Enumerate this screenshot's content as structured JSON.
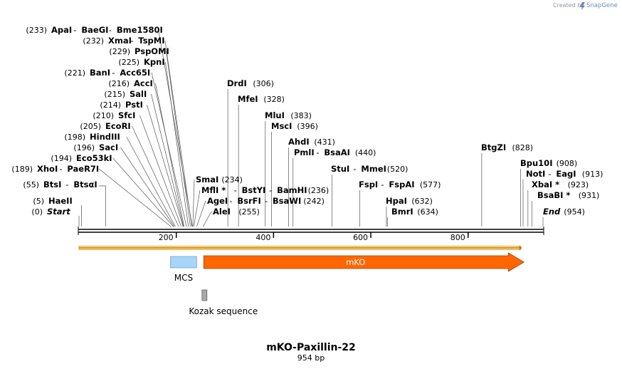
{
  "credit": {
    "created_by": "Created by",
    "brand": "SnapGene",
    "logo_icon": "snapgene-logo-icon"
  },
  "map": {
    "title": "mKO-Paxillin-22",
    "length_label": "954 bp",
    "length": 954,
    "ticks": [
      {
        "pos": 200,
        "label": "200"
      },
      {
        "pos": 400,
        "label": "400"
      },
      {
        "pos": 600,
        "label": "600"
      },
      {
        "pos": 800,
        "label": "800"
      }
    ]
  },
  "sites": [
    {
      "row": "r0",
      "kind": "left",
      "pos": 233,
      "num": "(233)",
      "parts": [
        {
          "t": "ApaI"
        },
        {
          "t": "BaeGI",
          "p": 233
        },
        {
          "t": "Bme1580I",
          "p": 233
        }
      ]
    },
    {
      "row": "r1",
      "kind": "left",
      "pos": 232,
      "num": "(232)",
      "parts": [
        {
          "t": "XmaI"
        },
        {
          "t": "TspMI",
          "p": 232
        }
      ]
    },
    {
      "row": "r2",
      "kind": "left",
      "pos": 229,
      "num": "(229)",
      "parts": [
        {
          "t": "PspOMI"
        }
      ]
    },
    {
      "row": "r3",
      "kind": "left",
      "pos": 225,
      "num": "(225)",
      "parts": [
        {
          "t": "KpnI"
        }
      ]
    },
    {
      "row": "r4",
      "kind": "left",
      "pos": 221,
      "num": "(221)",
      "parts": [
        {
          "t": "BanI"
        },
        {
          "t": "Acc65I",
          "p": 221
        }
      ]
    },
    {
      "row": "r5",
      "kind": "left",
      "pos": 216,
      "num": "(216)",
      "parts": [
        {
          "t": "AccI"
        }
      ]
    },
    {
      "row": "r6",
      "kind": "left",
      "pos": 215,
      "num": "(215)",
      "parts": [
        {
          "t": "SalI"
        }
      ]
    },
    {
      "row": "r7",
      "kind": "left",
      "pos": 214,
      "num": "(214)",
      "parts": [
        {
          "t": "PstI"
        }
      ]
    },
    {
      "row": "r8",
      "kind": "left",
      "pos": 210,
      "num": "(210)",
      "parts": [
        {
          "t": "SfcI"
        }
      ]
    },
    {
      "row": "r9",
      "kind": "left",
      "pos": 205,
      "num": "(205)",
      "parts": [
        {
          "t": "EcoRI"
        }
      ]
    },
    {
      "row": "r10",
      "kind": "left",
      "pos": 198,
      "num": "(198)",
      "parts": [
        {
          "t": "HindIII"
        }
      ]
    },
    {
      "row": "r11",
      "kind": "left",
      "pos": 196,
      "num": "(196)",
      "parts": [
        {
          "t": "SacI"
        }
      ]
    },
    {
      "row": "r12",
      "kind": "left",
      "pos": 194,
      "num": "(194)",
      "parts": [
        {
          "t": "Eco53kI"
        }
      ]
    },
    {
      "row": "r13",
      "kind": "left",
      "pos": 189,
      "num": "(189)",
      "parts": [
        {
          "t": "XhoI"
        },
        {
          "t": "PaeR7I",
          "p": 189
        }
      ]
    },
    {
      "row": "r14",
      "kind": "left",
      "pos": 55,
      "num": "(55)",
      "parts": [
        {
          "t": "BtsI"
        },
        {
          "t": "BtsαI",
          "p": 55
        }
      ]
    },
    {
      "row": "r15",
      "kind": "left",
      "pos": 5,
      "num": "(5)",
      "parts": [
        {
          "t": "HaeII"
        }
      ]
    },
    {
      "row": "r16",
      "kind": "left",
      "pos": 0,
      "num": "(0)",
      "italic": true,
      "parts": [
        {
          "t": "Start"
        }
      ]
    },
    {
      "row": "m0",
      "kind": "right",
      "pos": 234,
      "num": "(234)",
      "parts": [
        {
          "t": "SmaI"
        }
      ]
    },
    {
      "row": "m1",
      "kind": "right",
      "pos": 236,
      "num": "(236)",
      "parts": [
        {
          "t": "MflI *"
        },
        {
          "t": "BstYI",
          "p": 236
        },
        {
          "t": "BamHI",
          "p": 236
        }
      ]
    },
    {
      "row": "m2",
      "kind": "right",
      "pos": 242,
      "num": "(242)",
      "parts": [
        {
          "t": "AgeI"
        },
        {
          "t": "BsrFI",
          "p": 242
        },
        {
          "t": "BsaWI",
          "p": 242
        }
      ]
    },
    {
      "row": "m3",
      "kind": "right",
      "pos": 255,
      "num": "(255)",
      "parts": [
        {
          "t": "AleI"
        }
      ]
    },
    {
      "row": "c0",
      "kind": "right",
      "pos": 306,
      "num": "(306)",
      "parts": [
        {
          "t": "DrdI"
        }
      ]
    },
    {
      "row": "c1",
      "kind": "right",
      "pos": 328,
      "num": "(328)",
      "parts": [
        {
          "t": "MfeI"
        }
      ]
    },
    {
      "row": "c2",
      "kind": "right",
      "pos": 383,
      "num": "(383)",
      "parts": [
        {
          "t": "MluI"
        }
      ]
    },
    {
      "row": "c3",
      "kind": "right",
      "pos": 396,
      "num": "(396)",
      "parts": [
        {
          "t": "MscI"
        }
      ]
    },
    {
      "row": "c4",
      "kind": "right",
      "pos": 431,
      "num": "(431)",
      "parts": [
        {
          "t": "AhdI"
        }
      ]
    },
    {
      "row": "c5",
      "kind": "right",
      "pos": 440,
      "num": "(440)",
      "parts": [
        {
          "t": "PmlI"
        },
        {
          "t": "BsaAI",
          "p": 440
        }
      ]
    },
    {
      "row": "c6",
      "kind": "right",
      "pos": 520,
      "num": "(520)",
      "parts": [
        {
          "t": "StuI"
        },
        {
          "t": "MmeI",
          "p": 520
        }
      ]
    },
    {
      "row": "c7",
      "kind": "right",
      "pos": 577,
      "num": "(577)",
      "parts": [
        {
          "t": "FspI"
        },
        {
          "t": "FspAI",
          "p": 577
        }
      ]
    },
    {
      "row": "c8",
      "kind": "right",
      "pos": 632,
      "num": "(632)",
      "parts": [
        {
          "t": "HpaI"
        }
      ]
    },
    {
      "row": "c9",
      "kind": "right",
      "pos": 634,
      "num": "(634)",
      "parts": [
        {
          "t": "BmrI"
        }
      ]
    },
    {
      "row": "e0",
      "kind": "right",
      "pos": 828,
      "num": "(828)",
      "parts": [
        {
          "t": "BtgZI"
        }
      ]
    },
    {
      "row": "e1",
      "kind": "right",
      "pos": 908,
      "num": "(908)",
      "parts": [
        {
          "t": "Bpu10I"
        }
      ]
    },
    {
      "row": "e2",
      "kind": "right",
      "pos": 913,
      "num": "(913)",
      "parts": [
        {
          "t": "NotI"
        },
        {
          "t": "EagI",
          "p": 913
        }
      ]
    },
    {
      "row": "e3",
      "kind": "right",
      "pos": 923,
      "num": "(923)",
      "parts": [
        {
          "t": "XbaI *"
        }
      ]
    },
    {
      "row": "e4",
      "kind": "right",
      "pos": 931,
      "num": "(931)",
      "parts": [
        {
          "t": "BsaBI *"
        }
      ]
    },
    {
      "row": "e5",
      "kind": "right",
      "pos": 954,
      "num": "(954)",
      "italic": true,
      "parts": [
        {
          "t": "End"
        }
      ]
    }
  ],
  "features": [
    {
      "name": "ORF",
      "label": "",
      "start": 0,
      "end": 911,
      "color": "#f5a623",
      "style": "orf"
    },
    {
      "name": "MCS",
      "label": "MCS",
      "start": 188,
      "end": 242,
      "color": "#a6d4fa",
      "style": "box"
    },
    {
      "name": "mKO",
      "label": "mKO",
      "start": 255,
      "end": 912,
      "color": "#ff6600",
      "style": "arrow"
    },
    {
      "name": "Kozak",
      "label": "Kozak sequence",
      "start": 247,
      "end": 256,
      "color": "#a8a8a8",
      "style": "small"
    }
  ]
}
